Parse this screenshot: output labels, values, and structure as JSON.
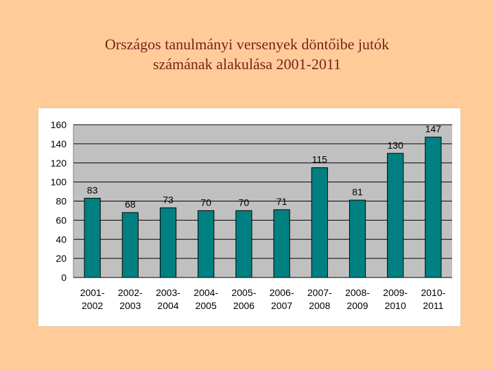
{
  "title": {
    "line1": "Országos tanulmányi versenyek döntőibe jutók",
    "line2": "számának alakulása  2001-2011"
  },
  "colors": {
    "background": "#ffcc99",
    "plot_area": "#c0c0c0",
    "bar": "#008080",
    "title_text": "#7a1f1a"
  },
  "chart_data": {
    "type": "bar",
    "categories": [
      [
        "2001-",
        "2002"
      ],
      [
        "2002-",
        "2003"
      ],
      [
        "2003-",
        "2004"
      ],
      [
        "2004-",
        "2005"
      ],
      [
        "2005-",
        "2006"
      ],
      [
        "2006-",
        "2007"
      ],
      [
        "2007-",
        "2008"
      ],
      [
        "2008-",
        "2009"
      ],
      [
        "2009-",
        "2010"
      ],
      [
        "2010-",
        "2011"
      ]
    ],
    "values": [
      83,
      68,
      73,
      70,
      70,
      71,
      115,
      81,
      130,
      147
    ],
    "xlabel": "",
    "ylabel": "",
    "ylim": [
      0,
      160
    ],
    "yticks": [
      0,
      20,
      40,
      60,
      80,
      100,
      120,
      140,
      160
    ],
    "grid": true,
    "legend": "none"
  }
}
